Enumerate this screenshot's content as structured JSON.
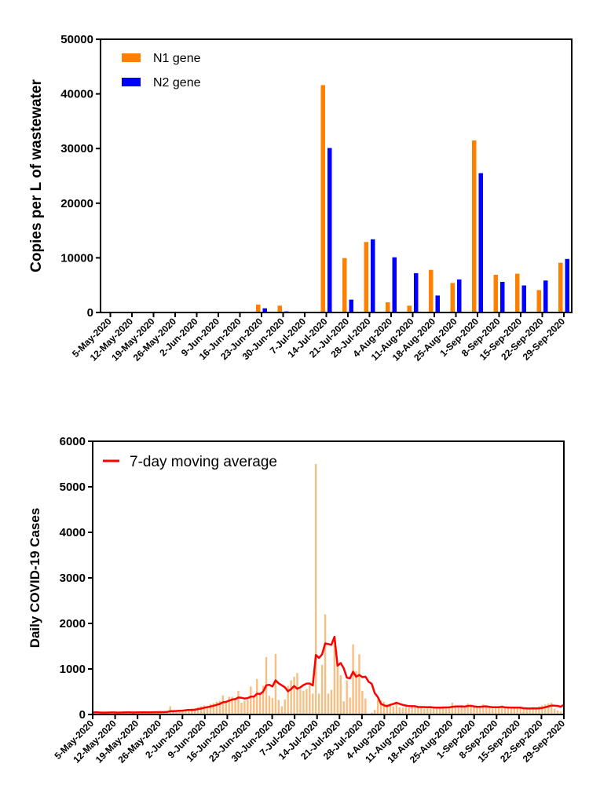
{
  "chart_data": [
    {
      "type": "bar",
      "ylabel": "Copies per L of wastewater",
      "ylim": [
        0,
        50000
      ],
      "yticks": [
        0,
        10000,
        20000,
        30000,
        40000,
        50000
      ],
      "grid": false,
      "legend_position": "top-left",
      "categories": [
        "5-May-2020",
        "12-May-2020",
        "19-May-2020",
        "26-May-2020",
        "2-Jun-2020",
        "9-Jun-2020",
        "16-Jun-2020",
        "23-Jun-2020",
        "30-Jun-2020",
        "7-Jul-2020",
        "14-Jul-2020",
        "21-Jul-2020",
        "28-Jul-2020",
        "4-Aug-2020",
        "11-Aug-2020",
        "18-Aug-2020",
        "25-Aug-2020",
        "1-Sep-2020",
        "8-Sep-2020",
        "15-Sep-2020",
        "22-Sep-2020",
        "29-Sep-2020"
      ],
      "series": [
        {
          "name": "N1 gene",
          "color": "#FF8000",
          "values": [
            0,
            0,
            0,
            0,
            0,
            0,
            0,
            1450,
            1250,
            0,
            41600,
            9950,
            12900,
            1870,
            1250,
            7800,
            5400,
            31500,
            6900,
            7100,
            4100,
            9100
          ]
        },
        {
          "name": "N2 gene",
          "color": "#0000FF",
          "values": [
            0,
            0,
            0,
            0,
            0,
            0,
            0,
            770,
            200,
            0,
            30100,
            2350,
            13400,
            10100,
            7200,
            3100,
            6050,
            25500,
            5600,
            4950,
            5850,
            9800
          ]
        }
      ]
    },
    {
      "type": "bar",
      "ylabel": "Daily COVID-19 Cases",
      "ylim": [
        0,
        6000
      ],
      "yticks": [
        0,
        1000,
        2000,
        3000,
        4000,
        5000,
        6000
      ],
      "grid": false,
      "legend_position": "top-left",
      "bar_color": "#F7BE82",
      "line_color": "#FF0000",
      "x_start": "5-May-2020",
      "x_end": "29-Sep-2020",
      "xticks": [
        "5-May-2020",
        "12-May-2020",
        "19-May-2020",
        "26-May-2020",
        "2-Jun-2020",
        "9-Jun-2020",
        "16-Jun-2020",
        "23-Jun-2020",
        "30-Jun-2020",
        "7-Jul-2020",
        "14-Jul-2020",
        "21-Jul-2020",
        "28-Jul-2020",
        "4-Aug-2020",
        "11-Aug-2020",
        "18-Aug-2020",
        "25-Aug-2020",
        "1-Sep-2020",
        "8-Sep-2020",
        "15-Sep-2020",
        "22-Sep-2020",
        "29-Sep-2020"
      ],
      "daily_cases": [
        40,
        60,
        35,
        30,
        45,
        50,
        55,
        40,
        30,
        50,
        45,
        60,
        40,
        35,
        50,
        45,
        55,
        40,
        60,
        50,
        45,
        55,
        60,
        50,
        65,
        180,
        60,
        70,
        90,
        80,
        110,
        120,
        140,
        130,
        160,
        180,
        200,
        190,
        230,
        250,
        280,
        300,
        420,
        260,
        390,
        390,
        330,
        520,
        260,
        300,
        330,
        615,
        390,
        780,
        480,
        630,
        1260,
        410,
        360,
        1330,
        320,
        180,
        330,
        630,
        750,
        830,
        910,
        550,
        520,
        560,
        650,
        460,
        5500,
        460,
        1090,
        2200,
        460,
        540,
        1690,
        1060,
        860,
        290,
        750,
        370,
        1540,
        950,
        1320,
        520,
        350,
        0,
        40,
        100,
        320,
        310,
        280,
        230,
        200,
        180,
        280,
        160,
        150,
        170,
        140,
        200,
        180,
        150,
        160,
        130,
        150,
        170,
        140,
        160,
        150,
        180,
        140,
        150,
        260,
        200,
        150,
        170,
        140,
        240,
        180,
        160,
        150,
        140,
        220,
        170,
        150,
        130,
        160,
        150,
        200,
        140,
        150,
        120,
        130,
        170,
        140,
        120,
        110,
        130,
        150,
        120,
        180,
        200,
        220,
        240,
        260,
        130,
        90,
        60,
        480
      ],
      "series": [
        {
          "name": "7-day moving average",
          "source": "daily_cases",
          "window_days": 7
        }
      ]
    }
  ]
}
